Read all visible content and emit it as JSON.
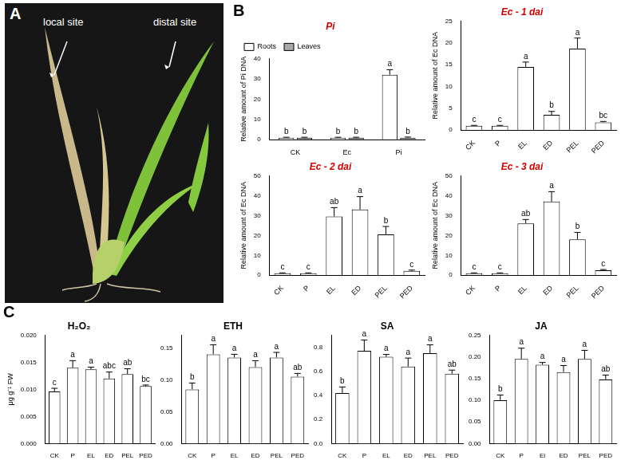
{
  "panel_labels": [
    "A",
    "B",
    "C"
  ],
  "photo": {
    "annotations": [
      "local site",
      "distal site"
    ]
  },
  "chart_data": [
    {
      "type": "bar",
      "title": "Pi",
      "y_label": "Relative amount of Pi DNA",
      "categories": [
        "CK",
        "Ec",
        "Pi"
      ],
      "series": [
        {
          "name": "Roots",
          "color": "#ffffff",
          "values": [
            1,
            1,
            32
          ],
          "errors": [
            0.2,
            0.2,
            2.5
          ],
          "letters": [
            "b",
            "b",
            "a"
          ]
        },
        {
          "name": "Leaves",
          "color": "#aaaaaa",
          "values": [
            1,
            1,
            1
          ],
          "errors": [
            0.2,
            0.2,
            0.3
          ],
          "letters": [
            "b",
            "b",
            "b"
          ]
        }
      ],
      "ylim": [
        0,
        40
      ],
      "yticks": [
        0,
        10,
        20,
        30,
        40
      ],
      "grid": false,
      "legend": "upper left"
    },
    {
      "type": "bar",
      "title": "Ec - 1 dai",
      "y_label": "Relative amount of Ec DNA",
      "categories": [
        "CK",
        "P",
        "EL",
        "ED",
        "PEL",
        "PED"
      ],
      "color": "#ffffff",
      "values": [
        1,
        1,
        14.5,
        3.5,
        18.7,
        1.8
      ],
      "errors": [
        0.1,
        0.1,
        1.1,
        0.8,
        2.4,
        0.2
      ],
      "letters": [
        "c",
        "c",
        "a",
        "b",
        "a",
        "bc"
      ],
      "ylim": [
        0,
        25
      ],
      "yticks": [
        0,
        5,
        10,
        15,
        20,
        25
      ],
      "grid": false
    },
    {
      "type": "bar",
      "title": "Ec - 2 dai",
      "y_label": "Relative amount of Ec DNA",
      "categories": [
        "CK",
        "P",
        "EL",
        "ED",
        "PEL",
        "PED"
      ],
      "color": "#ffffff",
      "values": [
        1,
        1,
        29.5,
        33,
        20.5,
        2.2
      ],
      "errors": [
        0.2,
        0.2,
        4.5,
        6.5,
        4,
        0.4
      ],
      "letters": [
        "c",
        "c",
        "ab",
        "a",
        "b",
        "c"
      ],
      "ylim": [
        0,
        50
      ],
      "yticks": [
        0,
        10,
        20,
        30,
        40,
        50
      ],
      "grid": false
    },
    {
      "type": "bar",
      "title": "Ec - 3 dai",
      "y_label": "Relative amount of Ec DNA",
      "categories": [
        "CK",
        "P",
        "EL",
        "ED",
        "PEL",
        "PED"
      ],
      "color": "#ffffff",
      "values": [
        1,
        1,
        26,
        37,
        18,
        2.5
      ],
      "errors": [
        0.2,
        0.2,
        2,
        5,
        3.5,
        0.4
      ],
      "letters": [
        "c",
        "c",
        "ab",
        "a",
        "b",
        "c"
      ],
      "ylim": [
        0,
        50
      ],
      "yticks": [
        0,
        10,
        20,
        30,
        40,
        50
      ],
      "grid": false
    },
    {
      "type": "bar",
      "title": "H₂O₂",
      "y_label": "μg g⁻¹ FW",
      "categories": [
        "CK",
        "P",
        "EL",
        "ED",
        "PEL",
        "PED"
      ],
      "color": "#ffffff",
      "values": [
        0.0096,
        0.014,
        0.0137,
        0.012,
        0.0128,
        0.0106
      ],
      "errors": [
        0.0006,
        0.0013,
        0.0004,
        0.0012,
        0.001,
        0.0002
      ],
      "letters": [
        "c",
        "a",
        "a",
        "abc",
        "ab",
        "bc"
      ],
      "ylim": [
        0,
        0.02
      ],
      "yticks": [
        {
          "value": 0,
          "label": "0.000"
        },
        {
          "value": 0.005,
          "label": "0.005"
        },
        {
          "value": 0.01,
          "label": "0.010"
        },
        {
          "value": 0.015,
          "label": "0.015"
        },
        {
          "value": 0.02,
          "label": "0.020"
        }
      ],
      "grid": false
    },
    {
      "type": "bar",
      "title": "ETH",
      "categories": [
        "CK",
        "P",
        "EL",
        "ED",
        "PEL",
        "PED"
      ],
      "color": "#ffffff",
      "values": [
        0.085,
        0.14,
        0.135,
        0.12,
        0.135,
        0.105
      ],
      "errors": [
        0.01,
        0.015,
        0.005,
        0.01,
        0.008,
        0.005
      ],
      "letters": [
        "b",
        "a",
        "a",
        "a",
        "a",
        "ab"
      ],
      "ylim": [
        0,
        0.17
      ],
      "yticks": [
        {
          "value": 0,
          "label": "0.00"
        },
        {
          "value": 0.05,
          "label": "0.05"
        },
        {
          "value": 0.1,
          "label": "0.10"
        },
        {
          "value": 0.15,
          "label": "0.15"
        }
      ],
      "grid": false
    },
    {
      "type": "bar",
      "title": "SA",
      "categories": [
        "CK",
        "P",
        "EL",
        "ED",
        "PEL",
        "PED"
      ],
      "color": "#ffffff",
      "values": [
        0.42,
        0.77,
        0.72,
        0.64,
        0.75,
        0.58
      ],
      "errors": [
        0.05,
        0.09,
        0.02,
        0.07,
        0.07,
        0.03
      ],
      "letters": [
        "b",
        "a",
        "a",
        "a",
        "a",
        "ab"
      ],
      "ylim": [
        0,
        0.9
      ],
      "yticks": [
        {
          "value": 0,
          "label": "0.0"
        },
        0.2,
        0.4,
        0.6,
        0.8
      ],
      "grid": false
    },
    {
      "type": "bar",
      "title": "JA",
      "categories": [
        "CK",
        "P",
        "El",
        "ED",
        "PEL",
        "PED"
      ],
      "color": "#ffffff",
      "values": [
        0.1,
        0.195,
        0.182,
        0.165,
        0.195,
        0.148
      ],
      "errors": [
        0.012,
        0.025,
        0.005,
        0.015,
        0.02,
        0.01
      ],
      "letters": [
        "b",
        "a",
        "a",
        "a",
        "a",
        "ab"
      ],
      "ylim": [
        0,
        0.25
      ],
      "yticks": [
        {
          "value": 0,
          "label": "0.00"
        },
        0.05,
        {
          "value": 0.1,
          "label": "0.10"
        },
        0.15,
        {
          "value": 0.2,
          "label": "0.20"
        },
        0.25
      ],
      "grid": false
    }
  ]
}
